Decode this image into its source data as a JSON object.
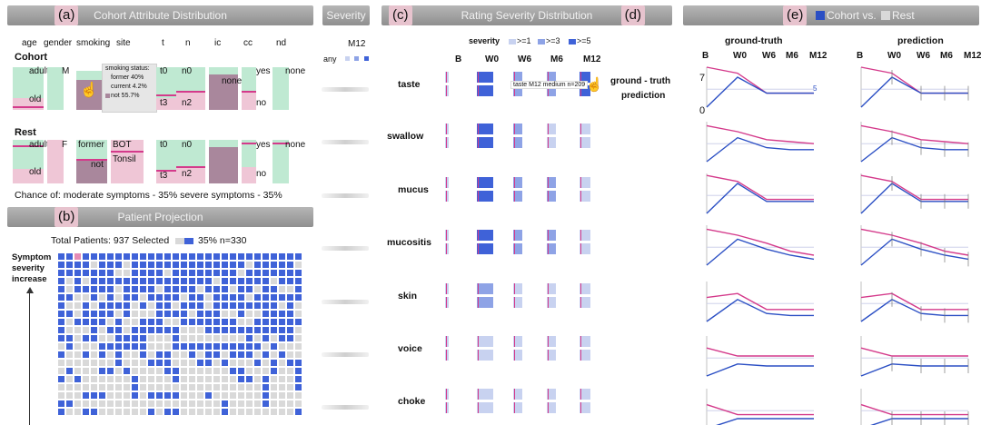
{
  "panels": {
    "a": {
      "letter": "(a)",
      "title": "Cohort Attribute Distribution"
    },
    "severity": {
      "title": "Severity",
      "time": "M12",
      "any": "any"
    },
    "b": {
      "letter": "(b)",
      "title": "Patient Projection"
    },
    "c": {
      "letter": "(c)",
      "title": "Rating Severity Distribution"
    },
    "d": {
      "letter": "(d)"
    },
    "e": {
      "letter": "(e)",
      "cohort_label": "Cohort vs.",
      "rest_label": "Rest"
    }
  },
  "attributes": {
    "columns": [
      "age",
      "gender",
      "smoking",
      "site",
      "t",
      "n",
      "ic",
      "cc",
      "nd"
    ],
    "cohort_title": "Cohort",
    "rest_title": "Rest",
    "cohort_labels": {
      "age_top": "adult",
      "age_bottom": "old",
      "gender": "M",
      "t_top": "t0",
      "t_bottom": "t3",
      "n_top": "n0",
      "n_bottom": "n2",
      "ic": "none",
      "cc_top": "yes",
      "cc_bottom": "no",
      "nd": "none"
    },
    "rest_labels": {
      "age_top": "adult",
      "age_bottom": "old",
      "gender": "F",
      "smoking_top": "former",
      "smoking_bottom": "not",
      "site_top": "BOT",
      "site_bottom": "Tonsil",
      "t_top": "t0",
      "t_bottom": "t3",
      "n_top": "n0",
      "n_bottom": "n2",
      "cc_top": "yes",
      "cc_bottom": "no",
      "nd": "none"
    },
    "tooltip": {
      "title": "smoking status:",
      "former": "former 40%",
      "current": "current 4.2%",
      "not": "not 55.7%"
    },
    "chance_text": "Chance of: moderate symptoms - 35% severe symptoms - 35%"
  },
  "projection": {
    "total_text": "Total Patients: 937 Selected",
    "selected_text": "35% n=330",
    "axis_label_lines": [
      "Symptom",
      "severity",
      "increase"
    ],
    "selected_fraction": 0.35
  },
  "rating": {
    "severity_label": "severity",
    "legend": [
      ">=1",
      ">=3",
      ">=5"
    ],
    "time_points": [
      "B",
      "W0",
      "W6",
      "M6",
      "M12"
    ],
    "symptoms": [
      "taste",
      "swallow",
      "mucus",
      "mucositis",
      "skin",
      "voice",
      "choke"
    ],
    "tooltip": "taste M12 medium n=209",
    "series_labels": [
      "ground - truth",
      "prediction"
    ]
  },
  "trends": {
    "col_titles": [
      "ground-truth",
      "prediction"
    ],
    "time_points": [
      "B",
      "W0",
      "W6",
      "M6",
      "M12"
    ],
    "y_axis": {
      "max_label": "7",
      "min_label": "0",
      "end_label": "5"
    },
    "colors": {
      "cohort": "#2b4fc4",
      "rest": "#d43a8b"
    }
  },
  "colors": {
    "green": "#bfe9d2",
    "pink": "#efc6d6",
    "magenta": "#d43a8b",
    "blue": "#3f62d8",
    "gray_sq": "#d9d9d9"
  }
}
